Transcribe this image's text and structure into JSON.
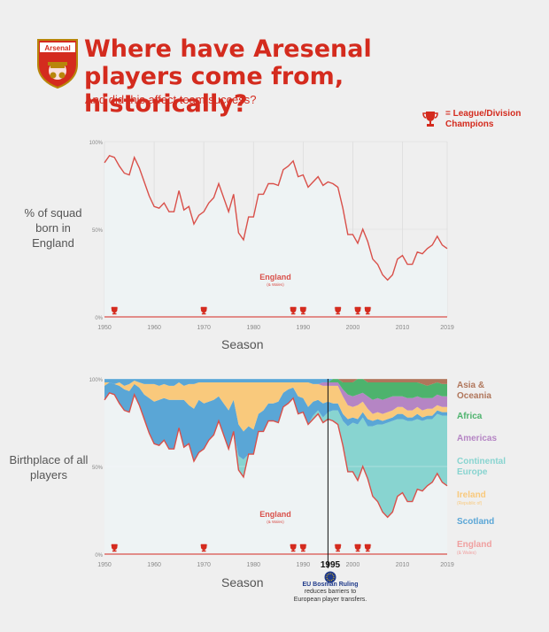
{
  "header": {
    "badge_text": "Arsenal",
    "title": "Where have Aresenal players come from, historically?",
    "subtitle": "And did this affect team success?"
  },
  "legend_champions": {
    "label": "= League/Division Champions"
  },
  "colors": {
    "england": "#d9504a",
    "england_fill": "#eef3f4",
    "continental_europe": "#88d4d0",
    "scotland": "#5aa6d6",
    "ireland": "#f9c97c",
    "americas": "#b585c4",
    "africa": "#4db36d",
    "asia_oceania": "#b0765b",
    "accent": "#d42b1e"
  },
  "chart_data": [
    {
      "type": "area",
      "ylabel": "% of squad born in England",
      "xlabel": "Season",
      "xlim": [
        1950,
        2019
      ],
      "ylim": [
        0,
        100
      ],
      "x_ticks": [
        "1950",
        "1960",
        "1970",
        "1980",
        "1990",
        "2000",
        "2010",
        "2019"
      ],
      "y_ticks": [
        "0%",
        "50%",
        "100%"
      ],
      "area_label": "England",
      "area_sublabel": "(& Wales)",
      "series": [
        {
          "name": "England",
          "x": [
            1950,
            1951,
            1952,
            1953,
            1954,
            1955,
            1956,
            1957,
            1958,
            1959,
            1960,
            1961,
            1962,
            1963,
            1964,
            1965,
            1966,
            1967,
            1968,
            1969,
            1970,
            1971,
            1972,
            1973,
            1974,
            1975,
            1976,
            1977,
            1978,
            1979,
            1980,
            1981,
            1982,
            1983,
            1984,
            1985,
            1986,
            1987,
            1988,
            1989,
            1990,
            1991,
            1992,
            1993,
            1994,
            1995,
            1996,
            1997,
            1998,
            1999,
            2000,
            2001,
            2002,
            2003,
            2004,
            2005,
            2006,
            2007,
            2008,
            2009,
            2010,
            2011,
            2012,
            2013,
            2014,
            2015,
            2016,
            2017,
            2018,
            2019
          ],
          "values": [
            88,
            92,
            91,
            86,
            82,
            81,
            91,
            85,
            77,
            69,
            63,
            62,
            65,
            60,
            60,
            72,
            61,
            63,
            53,
            58,
            60,
            65,
            68,
            76,
            68,
            60,
            70,
            48,
            44,
            57,
            57,
            70,
            70,
            76,
            76,
            75,
            84,
            86,
            89,
            80,
            81,
            74,
            77,
            80,
            75,
            77,
            76,
            74,
            62,
            47,
            47,
            42,
            50,
            43,
            33,
            30,
            24,
            21,
            24,
            33,
            35,
            30,
            30,
            37,
            36,
            39,
            41,
            46,
            41,
            39
          ]
        }
      ],
      "champion_seasons": [
        1953,
        1971,
        1989,
        1991,
        1998,
        2002,
        2004
      ]
    },
    {
      "type": "area",
      "stacked": true,
      "ylabel": "Birthplace of all players",
      "xlabel": "Season",
      "xlim": [
        1950,
        2019
      ],
      "ylim": [
        0,
        100
      ],
      "x_ticks": [
        "1950",
        "1960",
        "1970",
        "1980",
        "1990",
        "2000",
        "2010",
        "2019"
      ],
      "y_ticks": [
        "0%",
        "50%",
        "100%"
      ],
      "area_label": "England",
      "area_sublabel": "(& Wales)",
      "x": [
        1950,
        1951,
        1952,
        1953,
        1954,
        1955,
        1956,
        1957,
        1958,
        1959,
        1960,
        1961,
        1962,
        1963,
        1964,
        1965,
        1966,
        1967,
        1968,
        1969,
        1970,
        1971,
        1972,
        1973,
        1974,
        1975,
        1976,
        1977,
        1978,
        1979,
        1980,
        1981,
        1982,
        1983,
        1984,
        1985,
        1986,
        1987,
        1988,
        1989,
        1990,
        1991,
        1992,
        1993,
        1994,
        1995,
        1996,
        1997,
        1998,
        1999,
        2000,
        2001,
        2002,
        2003,
        2004,
        2005,
        2006,
        2007,
        2008,
        2009,
        2010,
        2011,
        2012,
        2013,
        2014,
        2015,
        2016,
        2017,
        2018,
        2019
      ],
      "series": [
        {
          "name": "England",
          "sublabel": "(& Wales)",
          "values": [
            88,
            92,
            91,
            86,
            82,
            81,
            91,
            85,
            77,
            69,
            63,
            62,
            65,
            60,
            60,
            72,
            61,
            63,
            53,
            58,
            60,
            65,
            68,
            76,
            68,
            60,
            70,
            48,
            44,
            57,
            57,
            70,
            70,
            76,
            76,
            75,
            84,
            86,
            89,
            80,
            81,
            74,
            77,
            80,
            75,
            77,
            76,
            74,
            62,
            47,
            47,
            42,
            50,
            43,
            33,
            30,
            24,
            21,
            24,
            33,
            35,
            30,
            30,
            37,
            36,
            39,
            41,
            46,
            41,
            39
          ]
        },
        {
          "name": "Continental Europe",
          "values": [
            0,
            0,
            0,
            0,
            0,
            0,
            0,
            0,
            0,
            0,
            0,
            0,
            0,
            0,
            0,
            0,
            0,
            0,
            0,
            0,
            0,
            0,
            0,
            0,
            0,
            0,
            0,
            8,
            10,
            0,
            0,
            0,
            0,
            0,
            0,
            0,
            0,
            0,
            0,
            0,
            0,
            0,
            2,
            2,
            3,
            4,
            6,
            8,
            14,
            26,
            28,
            32,
            28,
            30,
            40,
            44,
            50,
            54,
            52,
            44,
            42,
            46,
            46,
            40,
            40,
            38,
            36,
            34,
            38,
            40
          ]
        },
        {
          "name": "Scotland",
          "values": [
            8,
            6,
            6,
            10,
            12,
            12,
            6,
            10,
            14,
            20,
            24,
            26,
            24,
            28,
            28,
            16,
            27,
            22,
            30,
            30,
            26,
            22,
            20,
            14,
            18,
            22,
            18,
            18,
            16,
            16,
            14,
            10,
            12,
            10,
            10,
            12,
            8,
            8,
            6,
            10,
            8,
            10,
            8,
            6,
            8,
            6,
            4,
            4,
            4,
            4,
            3,
            3,
            3,
            4,
            3,
            3,
            2,
            2,
            2,
            3,
            3,
            2,
            2,
            3,
            2,
            2,
            2,
            2,
            2,
            2
          ]
        },
        {
          "name": "Ireland",
          "sublabel": "(Republic of)",
          "values": [
            2,
            0,
            0,
            2,
            2,
            4,
            2,
            3,
            6,
            8,
            10,
            8,
            8,
            8,
            8,
            10,
            8,
            12,
            14,
            10,
            12,
            11,
            10,
            8,
            12,
            16,
            10,
            24,
            28,
            25,
            27,
            18,
            16,
            12,
            12,
            11,
            6,
            4,
            3,
            8,
            9,
            14,
            10,
            9,
            10,
            9,
            10,
            10,
            10,
            8,
            6,
            8,
            6,
            6,
            4,
            4,
            4,
            4,
            4,
            4,
            4,
            4,
            4,
            4,
            4,
            4,
            4,
            3,
            3,
            3
          ]
        },
        {
          "name": "Americas",
          "values": [
            0,
            0,
            0,
            0,
            0,
            0,
            0,
            0,
            0,
            0,
            0,
            0,
            0,
            0,
            0,
            0,
            0,
            0,
            0,
            0,
            0,
            0,
            0,
            0,
            0,
            0,
            0,
            0,
            0,
            0,
            0,
            0,
            0,
            0,
            0,
            0,
            0,
            0,
            0,
            0,
            0,
            0,
            0,
            0,
            2,
            2,
            2,
            2,
            4,
            6,
            6,
            6,
            5,
            7,
            8,
            8,
            8,
            8,
            8,
            6,
            6,
            7,
            7,
            6,
            7,
            6,
            6,
            6,
            6,
            6
          ]
        },
        {
          "name": "Africa",
          "values": [
            0,
            0,
            0,
            0,
            0,
            0,
            0,
            0,
            0,
            0,
            0,
            0,
            0,
            0,
            0,
            0,
            0,
            0,
            0,
            0,
            0,
            0,
            0,
            0,
            0,
            0,
            0,
            0,
            0,
            0,
            0,
            0,
            0,
            0,
            0,
            0,
            0,
            0,
            0,
            0,
            0,
            0,
            0,
            0,
            0,
            0,
            2,
            2,
            4,
            7,
            8,
            9,
            8,
            8,
            10,
            9,
            10,
            9,
            8,
            8,
            8,
            9,
            9,
            8,
            8,
            7,
            8,
            7,
            7,
            7
          ]
        },
        {
          "name": "Asia & Oceania",
          "values": [
            0,
            0,
            0,
            0,
            0,
            0,
            0,
            0,
            0,
            0,
            0,
            0,
            0,
            0,
            0,
            0,
            0,
            0,
            0,
            0,
            0,
            0,
            0,
            0,
            0,
            0,
            0,
            0,
            0,
            0,
            0,
            0,
            0,
            0,
            0,
            0,
            0,
            0,
            0,
            0,
            0,
            0,
            0,
            0,
            0,
            0,
            0,
            0,
            2,
            2,
            2,
            0,
            0,
            2,
            2,
            2,
            2,
            2,
            2,
            2,
            2,
            2,
            2,
            2,
            3,
            4,
            3,
            2,
            3,
            3
          ]
        }
      ],
      "champion_seasons": [
        1953,
        1971,
        1989,
        1991,
        1998,
        2002,
        2004
      ],
      "annotation": {
        "x": 1995,
        "year_label": "1995",
        "title": "EU Bosman Ruling",
        "text_lines": [
          "reduces barriers to",
          "European player transfers."
        ]
      }
    }
  ]
}
